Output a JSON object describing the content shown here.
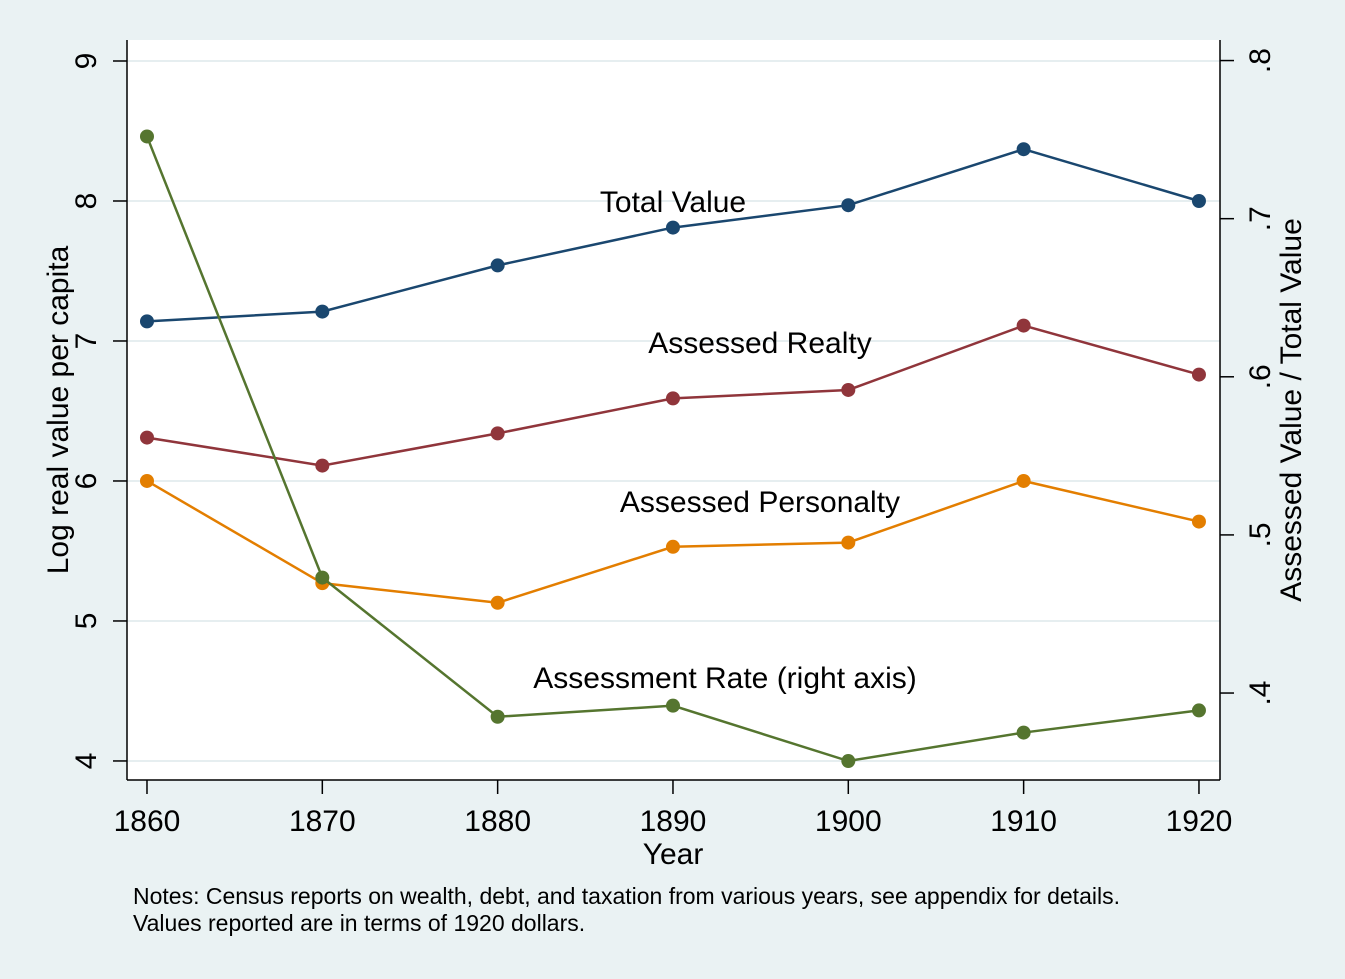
{
  "chart_data": {
    "type": "line",
    "x": [
      1860,
      1870,
      1880,
      1890,
      1900,
      1910,
      1920
    ],
    "xlim": [
      1858.86,
      1921.2
    ],
    "xticks": [
      1860,
      1870,
      1880,
      1890,
      1900,
      1910,
      1920
    ],
    "ylim": [
      3.864,
      9.15
    ],
    "yticks": [
      4,
      5,
      6,
      7,
      8,
      9
    ],
    "y2lim": [
      0.345,
      0.813
    ],
    "y2ticks": [
      {
        "value": 0.4,
        "label": ".4"
      },
      {
        "value": 0.5,
        "label": ".5"
      },
      {
        "value": 0.6,
        "label": ".6"
      },
      {
        "value": 0.7,
        "label": ".7"
      },
      {
        "value": 0.8,
        "label": ".8"
      }
    ],
    "x_label": "Year",
    "y_label": "Log real value per capita",
    "y2_label": "Assessed Value / Total Value",
    "grid": true,
    "notes": [
      "Notes: Census reports on wealth, debt, and taxation from various years, see appendix for details.",
      "Values reported are in terms of 1920 dollars."
    ],
    "series": [
      {
        "name": "Total Value",
        "color": "#1a476f",
        "values": [
          7.14,
          7.21,
          7.54,
          7.81,
          7.97,
          8.37,
          8.0
        ]
      },
      {
        "name": "Assessed Realty",
        "color": "#90353b",
        "values": [
          6.31,
          6.11,
          6.34,
          6.59,
          6.65,
          7.11,
          6.76
        ]
      },
      {
        "name": "Assessed Personalty",
        "color": "#e37e00",
        "values": [
          6.0,
          5.27,
          5.13,
          5.53,
          5.56,
          6.0,
          5.71
        ]
      },
      {
        "name": "Assessment Rate (right axis)",
        "color": "#55752f",
        "axis": "y2",
        "values": [
          0.752,
          0.473,
          0.385,
          0.392,
          0.357,
          0.375,
          0.389
        ]
      }
    ]
  }
}
